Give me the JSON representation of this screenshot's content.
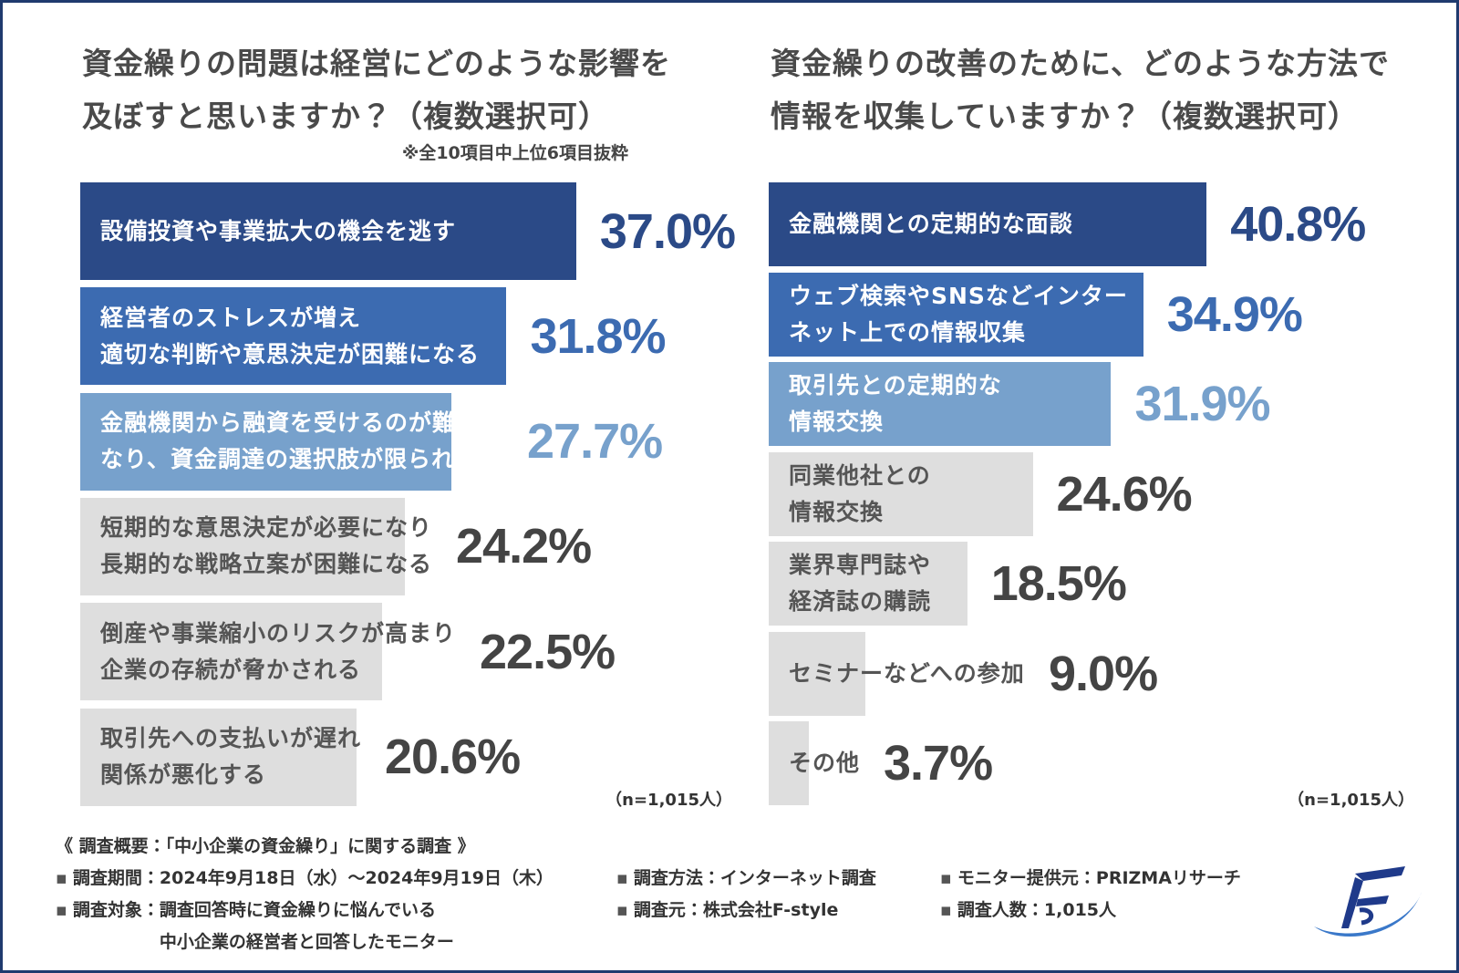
{
  "chart_data": [
    {
      "type": "bar",
      "orientation": "horizontal",
      "title": "資金繰りの問題は経営にどのような影響を\n及ぼすと思いますか？（複数選択可）",
      "note": "※全10項目中上位6項目抜粋",
      "categories": [
        "設備投資や事業拡大の機会を逃す",
        "経営者のストレスが増え\n適切な判断や意思決定が困難になる",
        "金融機関から融資を受けるのが難しく\nなり、資金調達の選択肢が限られる",
        "短期的な意思決定が必要になり\n長期的な戦略立案が困難になる",
        "倒産や事業縮小のリスクが高まり\n企業の存続が脅かされる",
        "取引先への支払いが遅れ\n関係が悪化する"
      ],
      "values": [
        37.0,
        31.8,
        27.7,
        24.2,
        22.5,
        20.6
      ],
      "value_labels": [
        "37.0%",
        "31.8%",
        "27.7%",
        "24.2%",
        "22.5%",
        "20.6%"
      ],
      "colors": [
        "#2b4a87",
        "#3c6bb1",
        "#77a1cc",
        "#dedede",
        "#dedede",
        "#dedede"
      ],
      "sample": "（n=1,015人）"
    },
    {
      "type": "bar",
      "orientation": "horizontal",
      "title": "資金繰りの改善のために、どのような方法で\n情報を収集していますか？（複数選択可）",
      "categories": [
        "金融機関との定期的な面談",
        "ウェブ検索やSNSなどインター\nネット上での情報収集",
        "取引先との定期的な\n情報交換",
        "同業他社との\n情報交換",
        "業界専門誌や\n経済誌の購読",
        "セミナーなどへの参加",
        "その他"
      ],
      "values": [
        40.8,
        34.9,
        31.9,
        24.6,
        18.5,
        9.0,
        3.7
      ],
      "value_labels": [
        "40.8%",
        "34.9%",
        "31.9%",
        "24.6%",
        "18.5%",
        "9.0%",
        "3.7%"
      ],
      "colors": [
        "#2b4a87",
        "#3c6bb1",
        "#77a1cc",
        "#dedede",
        "#dedede",
        "#dedede",
        "#dedede"
      ],
      "sample": "（n=1,015人）"
    }
  ],
  "footer": {
    "heading": "《 調査概要：「中小企業の資金繰り」に関する調査 》",
    "items": [
      {
        "label": "調査期間：",
        "value": "2024年9月18日（水）～2024年9月19日（木）"
      },
      {
        "label": "調査方法：",
        "value": "インターネット調査"
      },
      {
        "label": "モニター提供元：",
        "value": "PRIZMAリサーチ"
      },
      {
        "label": "調査対象：",
        "value": "調査回答時に資金繰りに悩んでいる\n中小企業の経営者と回答したモニター"
      },
      {
        "label": "調査元：",
        "value": "株式会社F-style"
      },
      {
        "label": "調査人数：",
        "value": "1,015人"
      }
    ]
  }
}
